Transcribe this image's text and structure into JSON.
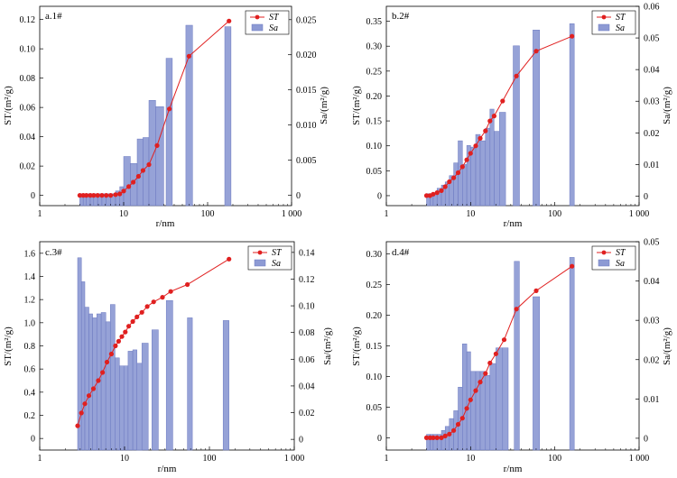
{
  "chart_data": [
    {
      "type": "bar",
      "panel_label": "a.1#",
      "xlabel": "r/nm",
      "xscale": "log",
      "xlim": [
        1,
        1000
      ],
      "xticks": [
        "1",
        "10",
        "100",
        "1 000"
      ],
      "ylabel_left": "ST/(m²/g)",
      "ylim_left": [
        -0.007,
        0.129
      ],
      "yticks_left": [
        "0",
        "0.02",
        "0.04",
        "0.06",
        "0.08",
        "0.10",
        "0.12"
      ],
      "ylabel_right": "Sa/(m²/g)",
      "ylim_right": [
        -0.0015,
        0.0269
      ],
      "yticks_right": [
        "0",
        "0.005",
        "0.010",
        "0.015",
        "0.020",
        "0.025"
      ],
      "legend": {
        "position": "top-right",
        "line": "ST",
        "bar": "Sa"
      },
      "bars_Sa": {
        "r_lo": [
          3.0,
          3.3,
          3.6,
          4.0,
          4.4,
          4.9,
          5.5,
          6.2,
          7.0,
          8.0,
          9.0,
          10.0,
          12.0,
          14.5,
          17.0,
          20.0,
          24.0,
          32.0,
          55.0,
          160.0
        ],
        "r_hi": [
          3.3,
          3.6,
          4.0,
          4.4,
          4.9,
          5.5,
          6.2,
          7.0,
          8.0,
          9.0,
          10.0,
          12.0,
          14.5,
          17.0,
          20.0,
          24.0,
          30.0,
          38.0,
          66.0,
          190.0
        ],
        "values": [
          0.0002,
          0.0002,
          0.0002,
          0.0002,
          0.0002,
          0.0002,
          0.0002,
          0.0002,
          0.0002,
          0.0006,
          0.0012,
          0.0055,
          0.0045,
          0.008,
          0.0082,
          0.0135,
          0.0126,
          0.0195,
          0.0242,
          0.024
        ]
      },
      "line_ST": {
        "r": [
          3.0,
          3.3,
          3.6,
          4.0,
          4.4,
          4.9,
          5.5,
          6.2,
          7.0,
          8.0,
          9.0,
          10.0,
          11.5,
          13.0,
          15.0,
          17.0,
          20.0,
          25.0,
          35.0,
          60.0,
          180.0
        ],
        "values": [
          0.0,
          0.0,
          0.0,
          0.0,
          0.0,
          0.0,
          0.0,
          0.0,
          0.0,
          0.0005,
          0.001,
          0.003,
          0.006,
          0.009,
          0.013,
          0.017,
          0.021,
          0.034,
          0.059,
          0.095,
          0.119
        ]
      }
    },
    {
      "type": "bar",
      "panel_label": "b.2#",
      "xlabel": "r/nm",
      "xscale": "log",
      "xlim": [
        1,
        1000
      ],
      "xticks": [
        "1",
        "10",
        "100",
        "1 000"
      ],
      "ylabel_left": "ST/(m²/g)",
      "ylim_left": [
        -0.02,
        0.38
      ],
      "yticks_left": [
        "0",
        "0.05",
        "0.10",
        "0.15",
        "0.20",
        "0.25",
        "0.30",
        "0.35"
      ],
      "ylabel_right": "Sa/(m²/g)",
      "ylim_right": [
        -0.003,
        0.06
      ],
      "yticks_right": [
        "0",
        "0.01",
        "0.02",
        "0.03",
        "0.04",
        "0.05",
        "0.06"
      ],
      "legend": {
        "position": "top-right",
        "line": "ST",
        "bar": "Sa"
      },
      "bars_Sa": {
        "r_lo": [
          3.0,
          3.3,
          3.6,
          4.0,
          4.5,
          5.0,
          5.6,
          6.3,
          7.1,
          8.0,
          9.0,
          10.0,
          11.5,
          13.0,
          15.0,
          17.0,
          19.0,
          22.0,
          32.0,
          55.0,
          150.0
        ],
        "r_hi": [
          3.3,
          3.6,
          4.0,
          4.5,
          5.0,
          5.6,
          6.3,
          7.1,
          8.0,
          9.0,
          10.0,
          11.5,
          13.0,
          15.0,
          17.0,
          19.0,
          22.0,
          26.0,
          38.0,
          66.0,
          170.0
        ],
        "values": [
          0.0008,
          0.0008,
          0.001,
          0.0025,
          0.0035,
          0.0045,
          0.0065,
          0.0105,
          0.0175,
          0.01,
          0.016,
          0.0155,
          0.0195,
          0.0175,
          0.0215,
          0.0275,
          0.0205,
          0.0265,
          0.0475,
          0.0525,
          0.0545
        ]
      },
      "line_ST": {
        "r": [
          3.0,
          3.3,
          3.6,
          4.0,
          4.5,
          5.0,
          5.6,
          6.3,
          7.1,
          8.0,
          9.0,
          10.0,
          11.5,
          13.0,
          15.0,
          17.0,
          19.0,
          24.0,
          35.0,
          60.0,
          160.0
        ],
        "values": [
          0.0,
          0.0,
          0.003,
          0.006,
          0.01,
          0.018,
          0.028,
          0.036,
          0.046,
          0.058,
          0.072,
          0.085,
          0.1,
          0.115,
          0.13,
          0.15,
          0.16,
          0.19,
          0.24,
          0.29,
          0.32
        ]
      }
    },
    {
      "type": "bar",
      "panel_label": "c.3#",
      "xlabel": "r/nm",
      "xscale": "log",
      "xlim": [
        1,
        1000
      ],
      "xticks": [
        "1",
        "10",
        "100",
        "1 000"
      ],
      "ylabel_left": "ST/(m²/g)",
      "ylim_left": [
        -0.1,
        1.7
      ],
      "yticks_left": [
        "0",
        "0.2",
        "0.4",
        "0.6",
        "0.8",
        "1.0",
        "1.2",
        "1.4",
        "1.6"
      ],
      "ylabel_right": "Sa/(m²/g)",
      "ylim_right": [
        -0.008,
        0.148
      ],
      "yticks_right": [
        "0",
        "0.02",
        "0.04",
        "0.06",
        "0.08",
        "0.10",
        "0.12",
        "0.14"
      ],
      "legend": {
        "position": "top-right",
        "line": "ST",
        "bar": "Sa"
      },
      "bars_Sa": {
        "r_lo": [
          2.8,
          3.1,
          3.4,
          3.8,
          4.2,
          4.7,
          5.3,
          6.0,
          6.8,
          7.7,
          8.7,
          9.8,
          11.0,
          12.5,
          14.0,
          16.0,
          21.0,
          31.0,
          55.0,
          145.0
        ],
        "r_hi": [
          3.1,
          3.4,
          3.8,
          4.2,
          4.7,
          5.3,
          6.0,
          6.8,
          7.7,
          8.7,
          9.8,
          11.0,
          12.5,
          14.0,
          16.0,
          19.0,
          25.0,
          37.0,
          63.0,
          170.0
        ],
        "values": [
          0.136,
          0.118,
          0.099,
          0.094,
          0.091,
          0.094,
          0.095,
          0.088,
          0.101,
          0.061,
          0.055,
          0.055,
          0.066,
          0.067,
          0.057,
          0.072,
          0.082,
          0.104,
          0.091,
          0.089
        ]
      },
      "line_ST": {
        "r": [
          2.8,
          3.1,
          3.4,
          3.8,
          4.3,
          4.9,
          5.5,
          6.2,
          7.0,
          7.8,
          8.5,
          9.3,
          10.2,
          11.2,
          12.5,
          14.0,
          16.0,
          18.5,
          22.0,
          28.0,
          35.0,
          55.0,
          170.0
        ],
        "values": [
          0.11,
          0.22,
          0.3,
          0.37,
          0.43,
          0.5,
          0.57,
          0.66,
          0.73,
          0.8,
          0.84,
          0.88,
          0.92,
          0.97,
          1.01,
          1.05,
          1.09,
          1.14,
          1.18,
          1.22,
          1.27,
          1.33,
          1.55
        ]
      }
    },
    {
      "type": "bar",
      "panel_label": "d.4#",
      "xlabel": "r/nm",
      "xscale": "log",
      "xlim": [
        1,
        1000
      ],
      "xticks": [
        "1",
        "10",
        "100",
        "1 000"
      ],
      "ylabel_left": "ST/(m²/g)",
      "ylim_left": [
        -0.02,
        0.32
      ],
      "yticks_left": [
        "0",
        "0.05",
        "0.10",
        "0.15",
        "0.20",
        "0.25",
        "0.30"
      ],
      "ylabel_right": "Sa/(m²/g)",
      "ylim_right": [
        -0.003,
        0.05
      ],
      "yticks_right": [
        "0",
        "0.01",
        "0.02",
        "0.03",
        "0.04",
        "0.05"
      ],
      "legend": {
        "position": "top-right",
        "line": "ST",
        "bar": "Sa"
      },
      "bars_Sa": {
        "r_lo": [
          3.0,
          3.3,
          3.6,
          4.0,
          4.5,
          5.0,
          5.6,
          6.3,
          7.1,
          8.0,
          9.0,
          10.0,
          11.5,
          13.0,
          15.0,
          17.0,
          20.0,
          24.0,
          33.0,
          55.0,
          150.0
        ],
        "r_hi": [
          3.3,
          3.6,
          4.0,
          4.5,
          5.0,
          5.6,
          6.3,
          7.1,
          8.0,
          9.0,
          10.0,
          11.5,
          13.0,
          15.0,
          17.0,
          20.0,
          24.0,
          28.0,
          38.0,
          66.0,
          170.0
        ],
        "values": [
          0.001,
          0.001,
          0.001,
          0.001,
          0.002,
          0.003,
          0.005,
          0.007,
          0.013,
          0.024,
          0.022,
          0.017,
          0.017,
          0.017,
          0.016,
          0.019,
          0.023,
          0.023,
          0.045,
          0.036,
          0.046
        ]
      },
      "line_ST": {
        "r": [
          3.0,
          3.3,
          3.6,
          4.0,
          4.5,
          5.0,
          5.6,
          6.3,
          7.1,
          8.0,
          9.0,
          10.0,
          11.5,
          13.0,
          15.0,
          17.0,
          20.0,
          25.0,
          35.0,
          60.0,
          160.0
        ],
        "values": [
          0.0,
          0.0,
          0.0,
          0.0,
          0.0,
          0.003,
          0.006,
          0.012,
          0.022,
          0.032,
          0.048,
          0.062,
          0.077,
          0.091,
          0.105,
          0.122,
          0.137,
          0.16,
          0.21,
          0.24,
          0.28
        ]
      }
    }
  ]
}
